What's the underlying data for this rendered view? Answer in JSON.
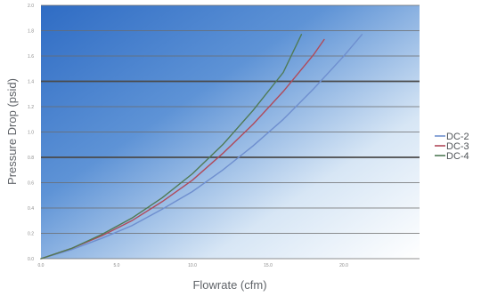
{
  "chart_data": {
    "type": "line",
    "xlabel": "Flowrate (cfm)",
    "ylabel": "Pressure Drop (psid)",
    "xlim": [
      0,
      25
    ],
    "ylim": [
      0,
      2.0
    ],
    "x_ticks": [
      "0.0",
      "5.0",
      "10.0",
      "15.0",
      "20.0"
    ],
    "x_tick_values": [
      0,
      5,
      10,
      15,
      20
    ],
    "y_ticks": [
      "0.0",
      "0.2",
      "0.4",
      "0.6",
      "0.8",
      "1.0",
      "1.2",
      "1.4",
      "1.6",
      "1.8",
      "2.0"
    ],
    "y_tick_values": [
      0,
      0.2,
      0.4,
      0.6,
      0.8,
      1.0,
      1.2,
      1.4,
      1.6,
      1.8,
      2.0
    ],
    "grid": true,
    "legend_position": "right",
    "series": [
      {
        "name": "DC-2",
        "color": "#6f8fcf",
        "x": [
          0,
          2,
          4,
          6,
          8,
          10,
          12,
          14,
          16,
          18,
          20,
          21.2
        ],
        "y": [
          0,
          0.07,
          0.16,
          0.26,
          0.39,
          0.53,
          0.7,
          0.89,
          1.1,
          1.34,
          1.6,
          1.77
        ]
      },
      {
        "name": "DC-3",
        "color": "#b04a5a",
        "x": [
          0,
          2,
          4,
          6,
          8,
          10,
          12,
          14,
          16,
          18,
          18.7
        ],
        "y": [
          0,
          0.08,
          0.18,
          0.3,
          0.45,
          0.62,
          0.83,
          1.06,
          1.32,
          1.61,
          1.73
        ]
      },
      {
        "name": "DC-4",
        "color": "#4f7a55",
        "x": [
          0,
          2,
          4,
          6,
          8,
          10,
          12,
          14,
          16,
          17.2
        ],
        "y": [
          0,
          0.08,
          0.19,
          0.32,
          0.48,
          0.67,
          0.9,
          1.17,
          1.47,
          1.77
        ]
      }
    ]
  }
}
